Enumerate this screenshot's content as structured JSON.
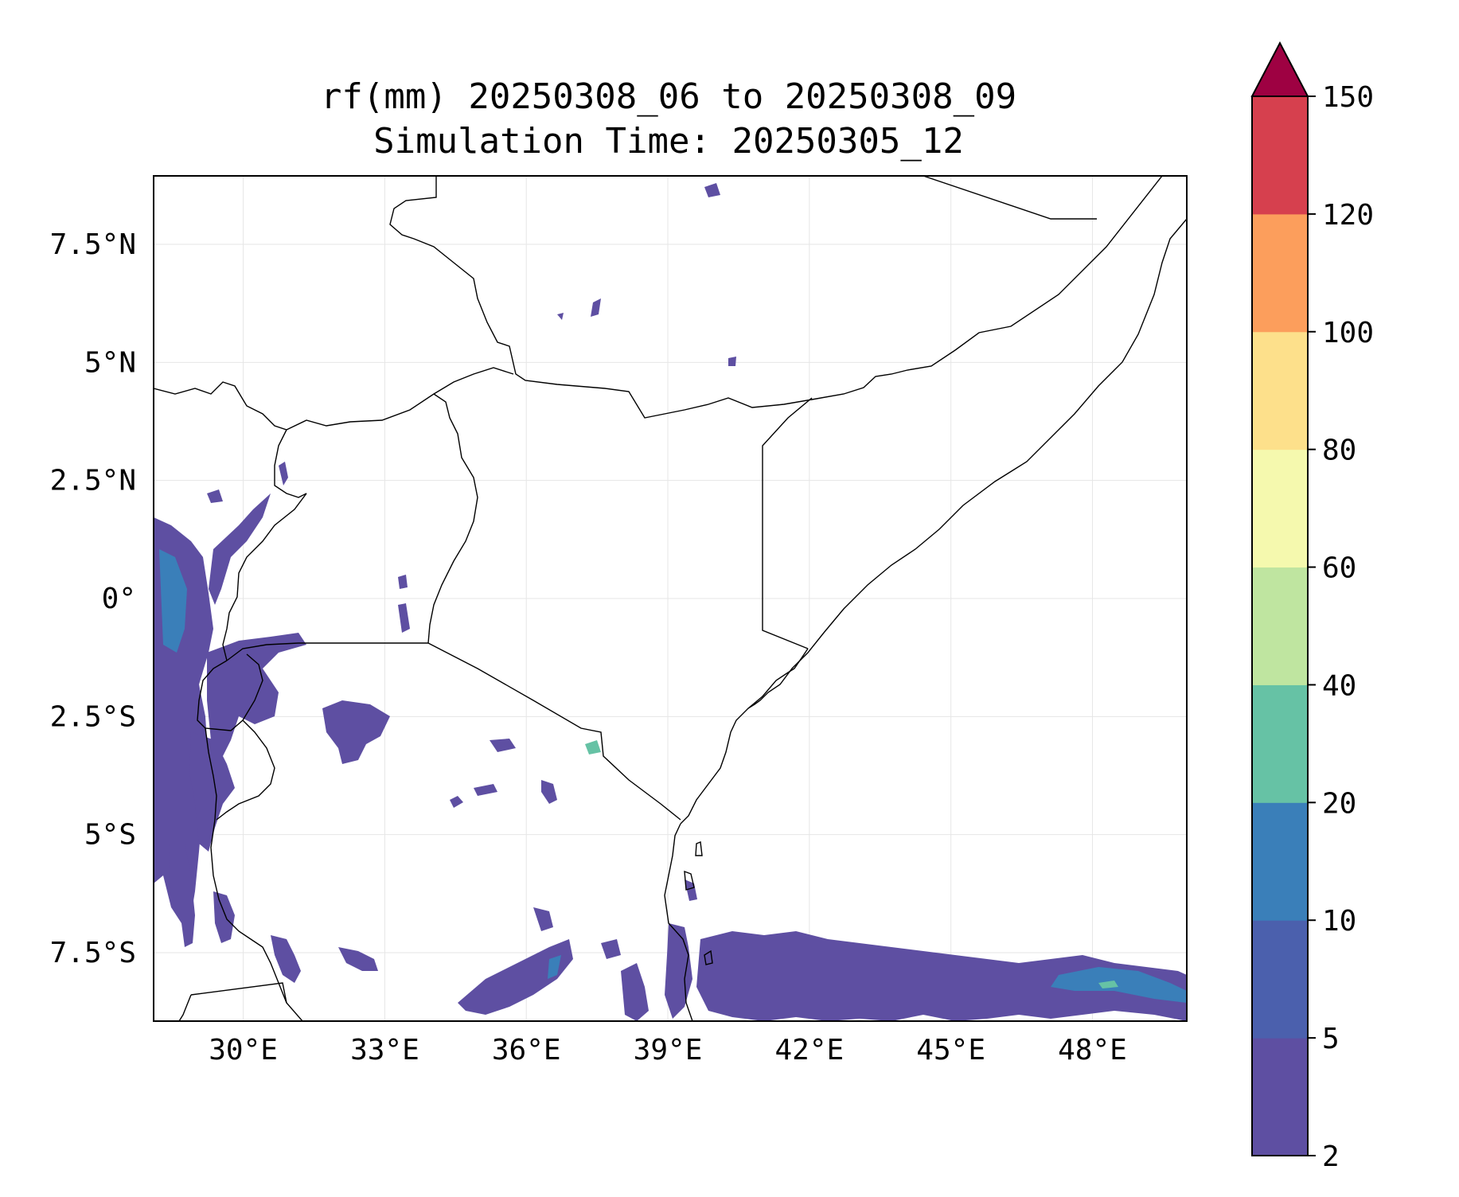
{
  "title": {
    "line1": "rf(mm) 20250308_06 to 20250308_09",
    "line2": "Simulation Time: 20250305_12"
  },
  "map": {
    "lon_range": [
      28.1,
      50.0
    ],
    "lat_range": [
      -8.95,
      8.95
    ],
    "x_ticks": [
      {
        "lon": 30,
        "label": "30°E"
      },
      {
        "lon": 33,
        "label": "33°E"
      },
      {
        "lon": 36,
        "label": "36°E"
      },
      {
        "lon": 39,
        "label": "39°E"
      },
      {
        "lon": 42,
        "label": "42°E"
      },
      {
        "lon": 45,
        "label": "45°E"
      },
      {
        "lon": 48,
        "label": "48°E"
      }
    ],
    "y_ticks": [
      {
        "lat": 7.5,
        "label": "7.5°N"
      },
      {
        "lat": 5,
        "label": "5°N"
      },
      {
        "lat": 2.5,
        "label": "2.5°N"
      },
      {
        "lat": 0,
        "label": "0°"
      },
      {
        "lat": -2.5,
        "label": "2.5°S"
      },
      {
        "lat": -5,
        "label": "5°S"
      },
      {
        "lat": -7.5,
        "label": "7.5°S"
      }
    ],
    "gridlines": true,
    "rain_color_main": "#5e4fa2",
    "rain_color_mid": "#3288bd"
  },
  "colorbar": {
    "levels": [
      "2",
      "5",
      "10",
      "20",
      "40",
      "60",
      "80",
      "100",
      "120",
      "150"
    ],
    "colors": [
      "#5e4fa2",
      "#4b60ad",
      "#3a7fb9",
      "#66c2a5",
      "#bfe5a0",
      "#f5f9ae",
      "#fde08b",
      "#fc9e5c",
      "#d6404e"
    ],
    "extend_color": "#9e0142",
    "extend": "max"
  }
}
